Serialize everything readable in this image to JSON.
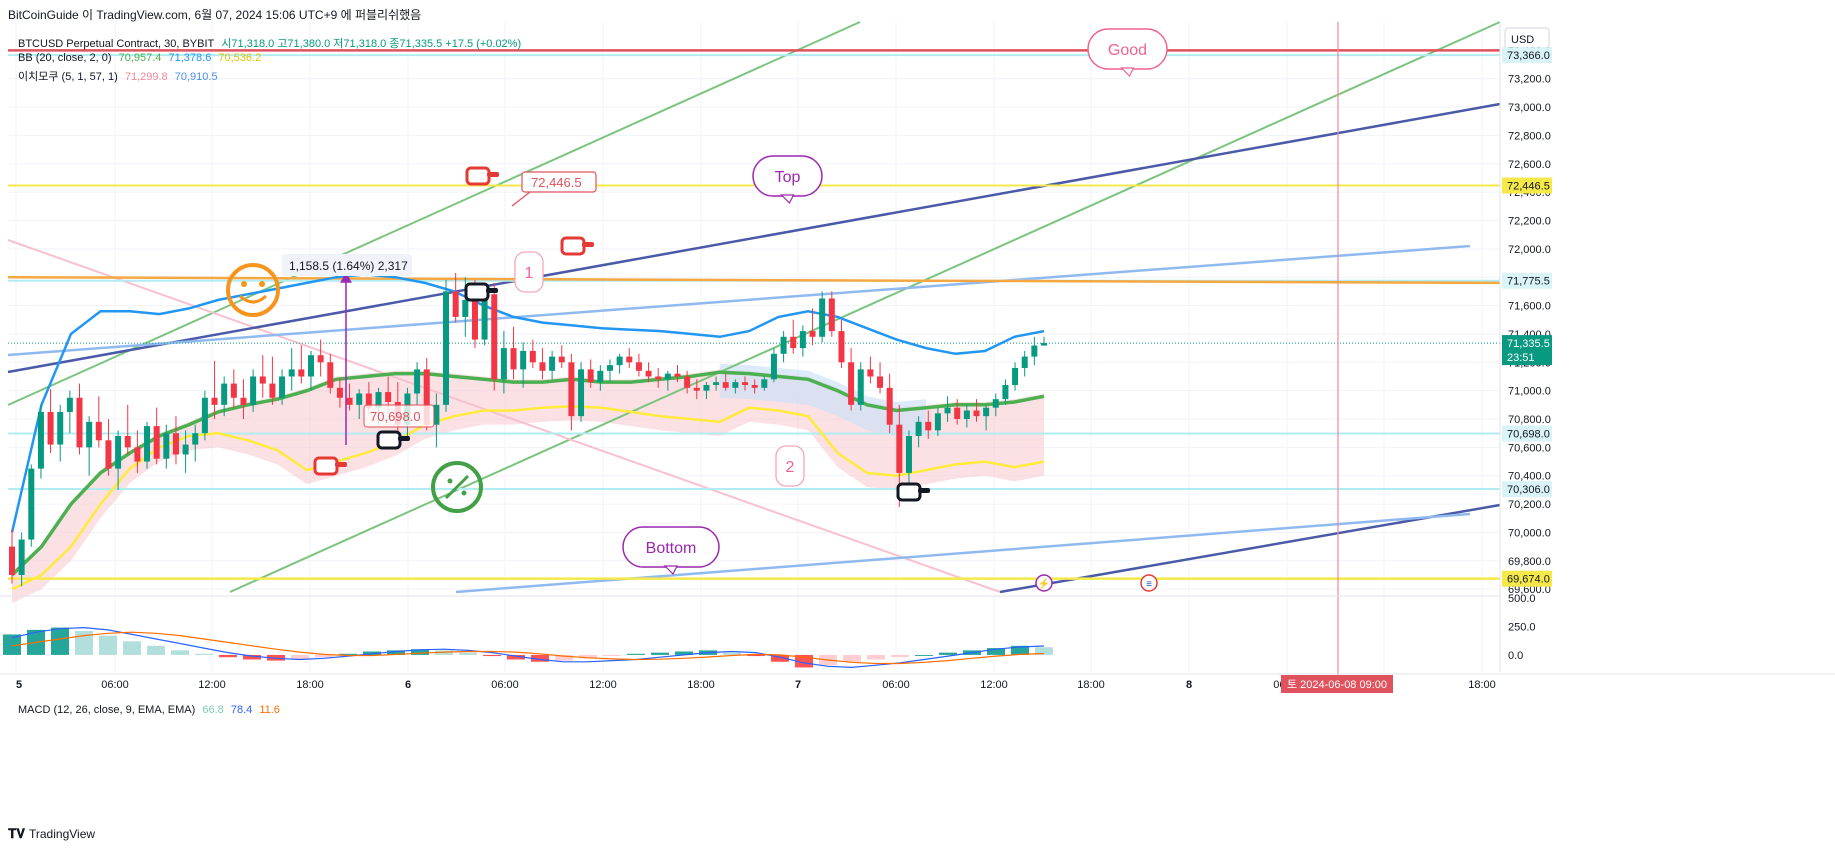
{
  "header": {
    "title": "BitCoinGuide 이 TradingView.com, 6월 07, 2024 15:06 UTC+9 에 퍼블리쉬했음"
  },
  "legend": {
    "symbol": "BTCUSD Perpetual Contract, 30, BYBIT",
    "ohlc": "시71,318.0 고71,380.0 저71,318.0 종71,335.5 +17.5 (+0.02%)",
    "bb_label": "BB (20, close, 2, 0)",
    "bb_basis": "70,957.4",
    "bb_upper": "71,378.6",
    "bb_lower": "70,536.2",
    "ichimoku_label": "이치모쿠 (5, 1, 57, 1)",
    "ichimoku_a": "71,299.8",
    "ichimoku_b": "70,910.5",
    "macd_label": "MACD (12, 26, close, 9, EMA, EMA)",
    "macd_hist": "66.8",
    "macd_line": "78.4",
    "macd_signal": "11.6"
  },
  "footer": {
    "brand": "TradingView"
  },
  "colors": {
    "up": "#089981",
    "down": "#f23645",
    "bb_upper": "#2196f3",
    "bb_basis": "#4caf50",
    "bb_lower": "#ffeb3b",
    "cloud": "#f8c9cd",
    "cloud_blue": "#cfe1f7",
    "trend_navy": "#4b5aa8",
    "trend_lightblue": "#90b9f0",
    "trend_green": "#7cc47f",
    "trend_pink": "#f7c1cf",
    "hline_yellow": "#f5e94a",
    "hline_orange": "#f5a742",
    "hline_red": "#e0525d",
    "hline_cyan": "#b2ebf2",
    "vline": "#f08a96",
    "macd_line": "#2962ff",
    "macd_signal": "#ff6d00"
  },
  "price_axis": {
    "currency": "USD",
    "ticks": [
      "73,400.0",
      "73,200.0",
      "73,000.0",
      "72,800.0",
      "72,600.0",
      "72,400.0",
      "72,200.0",
      "72,000.0",
      "71,800.0",
      "71,600.0",
      "71,400.0",
      "71,200.0",
      "71,000.0",
      "70,800.0",
      "70,600.0",
      "70,400.0",
      "70,200.0",
      "70,000.0",
      "69,800.0",
      "69,600.0"
    ],
    "badges": [
      {
        "label": "73,366.0",
        "value": 73366,
        "color": "#d9f3f7",
        "text": "#131722"
      },
      {
        "label": "72,446.5",
        "value": 72446.5,
        "color": "#f5e94a",
        "text": "#131722"
      },
      {
        "label": "71,775.5",
        "value": 71775.5,
        "color": "#d9f3f7",
        "text": "#131722"
      },
      {
        "label": "70,698.0",
        "value": 70698,
        "color": "#d9f3f7",
        "text": "#131722"
      },
      {
        "label": "70,306.0",
        "value": 70306,
        "color": "#d9f3f7",
        "text": "#131722"
      },
      {
        "label": "69,674.0",
        "value": 69674,
        "color": "#f5e94a",
        "text": "#131722"
      }
    ],
    "last_price": "71,335.5",
    "countdown": "23:51"
  },
  "macd_axis": {
    "ticks": [
      "500.0",
      "250.0",
      "0.0"
    ]
  },
  "time_axis": {
    "labels": [
      "5",
      "06:00",
      "12:00",
      "18:00",
      "6",
      "06:00",
      "12:00",
      "18:00",
      "7",
      "06:00",
      "12:00",
      "18:00",
      "8",
      "06:00",
      "18:00"
    ],
    "crosshair_label": "토 2024-06-08   09:00"
  },
  "annotations": {
    "price_label_1": "72,446.5",
    "price_label_2": "70,698.0",
    "measure": "1,158.5 (1.64%) 2,317",
    "bubble_top": "Top",
    "bubble_bottom": "Bottom",
    "bubble_good": "Good",
    "marker_1": "1",
    "marker_2": "2"
  },
  "chart_data": {
    "type": "candlestick",
    "timeframe": "30",
    "ylim": [
      69580,
      73600
    ],
    "series": [
      {
        "name": "BTCUSD",
        "ohlc": [
          [
            69900,
            70020,
            69640,
            69700
          ],
          [
            69700,
            70000,
            69620,
            69950
          ],
          [
            69950,
            70480,
            69900,
            70450
          ],
          [
            70450,
            70900,
            70380,
            70850
          ],
          [
            70850,
            71010,
            70560,
            70620
          ],
          [
            70620,
            70900,
            70500,
            70850
          ],
          [
            70850,
            71000,
            70700,
            70950
          ],
          [
            70950,
            71050,
            70550,
            70600
          ],
          [
            70600,
            70820,
            70400,
            70780
          ],
          [
            70780,
            70960,
            70600,
            70650
          ],
          [
            70650,
            70800,
            70400,
            70450
          ],
          [
            70450,
            70720,
            70300,
            70680
          ],
          [
            70680,
            70900,
            70550,
            70600
          ],
          [
            70600,
            70720,
            70420,
            70500
          ],
          [
            70500,
            70780,
            70450,
            70750
          ],
          [
            70750,
            70880,
            70480,
            70520
          ],
          [
            70520,
            70760,
            70450,
            70700
          ],
          [
            70700,
            70820,
            70480,
            70550
          ],
          [
            70550,
            70720,
            70420,
            70620
          ],
          [
            70620,
            70760,
            70500,
            70700
          ],
          [
            70700,
            71000,
            70650,
            70950
          ],
          [
            70950,
            71210,
            70800,
            70900
          ],
          [
            70900,
            71100,
            70820,
            71050
          ],
          [
            71050,
            71150,
            70880,
            70950
          ],
          [
            70950,
            71080,
            70800,
            70900
          ],
          [
            70900,
            71150,
            70850,
            71100
          ],
          [
            71100,
            71250,
            70950,
            71050
          ],
          [
            71050,
            71240,
            70900,
            70950
          ],
          [
            70950,
            71150,
            70900,
            71100
          ],
          [
            71100,
            71300,
            71000,
            71150
          ],
          [
            71150,
            71320,
            71050,
            71100
          ],
          [
            71100,
            71280,
            71000,
            71250
          ],
          [
            71250,
            71360,
            71100,
            71200
          ],
          [
            71200,
            71260,
            70980,
            71020
          ],
          [
            71020,
            71090,
            70880,
            70950
          ],
          [
            70950,
            71050,
            70860,
            70900
          ],
          [
            70900,
            71010,
            70800,
            70980
          ],
          [
            70980,
            71060,
            70860,
            70880
          ],
          [
            70880,
            71020,
            70760,
            70990
          ],
          [
            70990,
            71100,
            70850,
            70920
          ],
          [
            70920,
            71060,
            70700,
            70760
          ],
          [
            70760,
            71020,
            70660,
            70980
          ],
          [
            70980,
            71200,
            70900,
            71150
          ],
          [
            71150,
            71230,
            70720,
            70760
          ],
          [
            70760,
            70980,
            70600,
            70900
          ],
          [
            70900,
            71780,
            70850,
            71700
          ],
          [
            71700,
            71830,
            71480,
            71520
          ],
          [
            71520,
            71800,
            71380,
            71640
          ],
          [
            71640,
            71780,
            71300,
            71360
          ],
          [
            71360,
            71720,
            71320,
            71680
          ],
          [
            71680,
            71760,
            71000,
            71080
          ],
          [
            71080,
            71420,
            70980,
            71300
          ],
          [
            71300,
            71450,
            71080,
            71150
          ],
          [
            71150,
            71340,
            71020,
            71280
          ],
          [
            71280,
            71360,
            71160,
            71200
          ],
          [
            71200,
            71300,
            71080,
            71140
          ],
          [
            71140,
            71280,
            71080,
            71240
          ],
          [
            71240,
            71320,
            71160,
            71200
          ],
          [
            71200,
            71260,
            70720,
            70820
          ],
          [
            70820,
            71200,
            70780,
            71150
          ],
          [
            71150,
            71220,
            71020,
            71060
          ],
          [
            71060,
            71180,
            71000,
            71140
          ],
          [
            71140,
            71220,
            71060,
            71180
          ],
          [
            71180,
            71260,
            71120,
            71240
          ],
          [
            71240,
            71300,
            71160,
            71200
          ],
          [
            71200,
            71260,
            71100,
            71140
          ],
          [
            71140,
            71200,
            71060,
            71100
          ],
          [
            71100,
            71160,
            71020,
            71080
          ],
          [
            71080,
            71140,
            71000,
            71120
          ],
          [
            71120,
            71180,
            71060,
            71100
          ],
          [
            71100,
            71140,
            70980,
            71020
          ],
          [
            71020,
            71080,
            70940,
            71000
          ],
          [
            71000,
            71060,
            70940,
            71040
          ],
          [
            71040,
            71100,
            71000,
            71060
          ],
          [
            71060,
            71120,
            71000,
            71020
          ],
          [
            71020,
            71080,
            70980,
            71060
          ],
          [
            71060,
            71100,
            71000,
            71040
          ],
          [
            71040,
            71080,
            70980,
            71020
          ],
          [
            71020,
            71100,
            71000,
            71080
          ],
          [
            71080,
            71300,
            71060,
            71260
          ],
          [
            71260,
            71420,
            71200,
            71380
          ],
          [
            71380,
            71500,
            71260,
            71300
          ],
          [
            71300,
            71460,
            71240,
            71420
          ],
          [
            71420,
            71580,
            71320,
            71380
          ],
          [
            71380,
            71700,
            71340,
            71650
          ],
          [
            71650,
            71700,
            71380,
            71420
          ],
          [
            71420,
            71500,
            71160,
            71200
          ],
          [
            71200,
            71300,
            70860,
            70900
          ],
          [
            70900,
            71200,
            70860,
            71150
          ],
          [
            71150,
            71240,
            71050,
            71100
          ],
          [
            71100,
            71200,
            70980,
            71020
          ],
          [
            71020,
            71120,
            70700,
            70760
          ],
          [
            70760,
            70900,
            70180,
            70420
          ],
          [
            70420,
            70720,
            70240,
            70680
          ],
          [
            70680,
            70820,
            70600,
            70780
          ],
          [
            70780,
            70860,
            70660,
            70720
          ],
          [
            70720,
            70880,
            70680,
            70840
          ],
          [
            70840,
            70960,
            70780,
            70880
          ],
          [
            70880,
            70940,
            70760,
            70800
          ],
          [
            70800,
            70900,
            70740,
            70860
          ],
          [
            70860,
            70940,
            70780,
            70820
          ],
          [
            70820,
            70900,
            70720,
            70880
          ],
          [
            70880,
            70980,
            70820,
            70940
          ],
          [
            70940,
            71080,
            70900,
            71040
          ],
          [
            71040,
            71200,
            71000,
            71160
          ],
          [
            71160,
            71280,
            71100,
            71240
          ],
          [
            71240,
            71380,
            71180,
            71318
          ],
          [
            71318,
            71380,
            71318,
            71335.5
          ]
        ]
      }
    ],
    "bb_upper_series": [
      70000,
      70900,
      71400,
      71560,
      71560,
      71540,
      71580,
      71640,
      71680,
      71720,
      71760,
      71800,
      71820,
      71800,
      71760,
      71700,
      71600,
      71520,
      71480,
      71460,
      71440,
      71430,
      71420,
      71400,
      71380,
      71420,
      71520,
      71560,
      71520,
      71440,
      71360,
      71300,
      71260,
      71280,
      71380,
      71420
    ],
    "bb_basis_series": [
      69700,
      69900,
      70200,
      70420,
      70560,
      70680,
      70760,
      70850,
      70900,
      70940,
      71000,
      71080,
      71100,
      71120,
      71120,
      71100,
      71080,
      71060,
      71060,
      71080,
      71060,
      71060,
      71080,
      71100,
      71130,
      71120,
      71100,
      71080,
      71000,
      70900,
      70860,
      70880,
      70900,
      70900,
      70920,
      70960
    ],
    "bb_lower_series": [
      69600,
      69700,
      69900,
      70200,
      70450,
      70600,
      70680,
      70700,
      70650,
      70580,
      70440,
      70500,
      70560,
      70640,
      70760,
      70820,
      70860,
      70860,
      70880,
      70890,
      70880,
      70850,
      70820,
      70800,
      70780,
      70880,
      70860,
      70820,
      70560,
      70420,
      70400,
      70440,
      70480,
      70500,
      70460,
      70500
    ],
    "horizontal_lines": [
      73400,
      73366,
      72446.5,
      71775.5,
      70698,
      70306,
      69674
    ],
    "macd_hist": [
      180,
      220,
      240,
      210,
      170,
      120,
      80,
      40,
      10,
      -20,
      -40,
      -50,
      -40,
      -20,
      10,
      30,
      40,
      50,
      40,
      20,
      -10,
      -40,
      -60,
      -50,
      -30,
      -10,
      10,
      20,
      30,
      40,
      20,
      -10,
      -60,
      -110,
      -90,
      -60,
      -40,
      -20,
      0,
      20,
      40,
      60,
      80,
      66.8
    ],
    "macd_line": [
      150,
      200,
      230,
      240,
      220,
      180,
      140,
      100,
      60,
      20,
      -10,
      -30,
      -40,
      -30,
      -10,
      10,
      30,
      45,
      50,
      40,
      20,
      -10,
      -40,
      -60,
      -60,
      -50,
      -40,
      -20,
      0,
      20,
      30,
      20,
      -20,
      -70,
      -100,
      -110,
      -90,
      -70,
      -40,
      -10,
      20,
      50,
      70,
      78.4
    ],
    "macd_signal": [
      80,
      110,
      140,
      170,
      190,
      200,
      190,
      170,
      140,
      110,
      80,
      50,
      25,
      5,
      -5,
      -5,
      5,
      15,
      25,
      30,
      30,
      25,
      10,
      -10,
      -25,
      -35,
      -40,
      -38,
      -30,
      -18,
      -5,
      5,
      0,
      -20,
      -45,
      -65,
      -75,
      -75,
      -65,
      -50,
      -30,
      -10,
      5,
      11.6
    ]
  }
}
